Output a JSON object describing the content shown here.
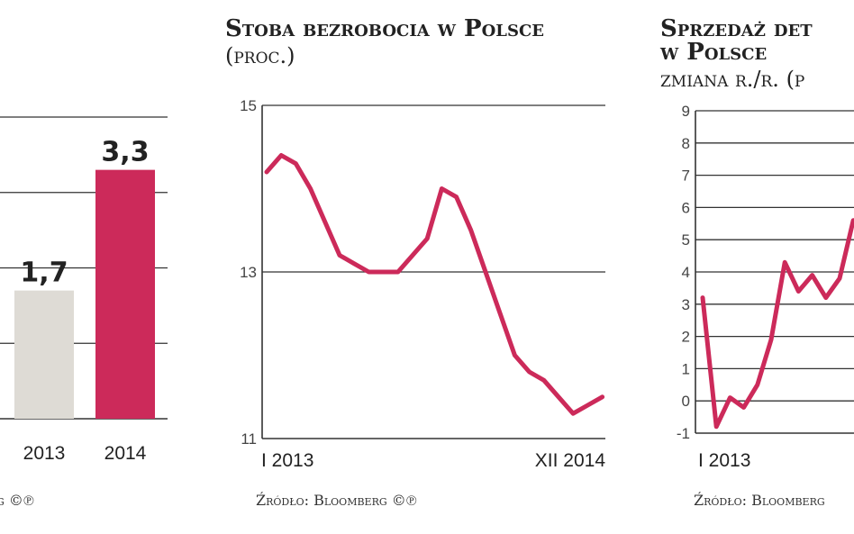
{
  "colors": {
    "accent": "#cc2a5a",
    "bar_gray": "#dedbd5",
    "grid": "#333333"
  },
  "chart_data": [
    {
      "type": "bar",
      "title": "",
      "categories": [
        "2013",
        "2014"
      ],
      "values": [
        1.7,
        3.3
      ],
      "value_labels": [
        "1,7",
        "3,3"
      ],
      "ylim": [
        0,
        4
      ],
      "source": "g ©℗"
    },
    {
      "type": "line",
      "title": "Stoba bezrobocia w Polsce",
      "subtitle": "(proc.)",
      "x_start_label": "I 2013",
      "x_end_label": "XII 2014",
      "yticks": [
        15,
        13,
        11
      ],
      "ylim": [
        11,
        15
      ],
      "values": [
        14.2,
        14.4,
        14.3,
        14.0,
        13.6,
        13.2,
        13.1,
        13.0,
        13.0,
        13.0,
        13.2,
        13.4,
        14.0,
        13.9,
        13.5,
        13.0,
        12.5,
        12.0,
        11.8,
        11.7,
        11.5,
        11.3,
        11.4,
        11.5
      ],
      "source": "Źródło: Bloomberg ©℗"
    },
    {
      "type": "line",
      "title": "Sprzedaż det",
      "title_line2": "w Polsce",
      "subtitle": "zmiana r./r. (p",
      "x_start_label": "I 2013",
      "yticks": [
        9,
        8,
        7,
        6,
        5,
        4,
        3,
        2,
        1,
        0,
        -1
      ],
      "ylim": [
        -1,
        9
      ],
      "values": [
        3.2,
        -0.8,
        0.1,
        -0.2,
        0.5,
        1.9,
        4.3,
        3.4,
        3.9,
        3.2,
        3.8,
        5.6
      ],
      "source": "Źródło: Bloomberg"
    }
  ]
}
